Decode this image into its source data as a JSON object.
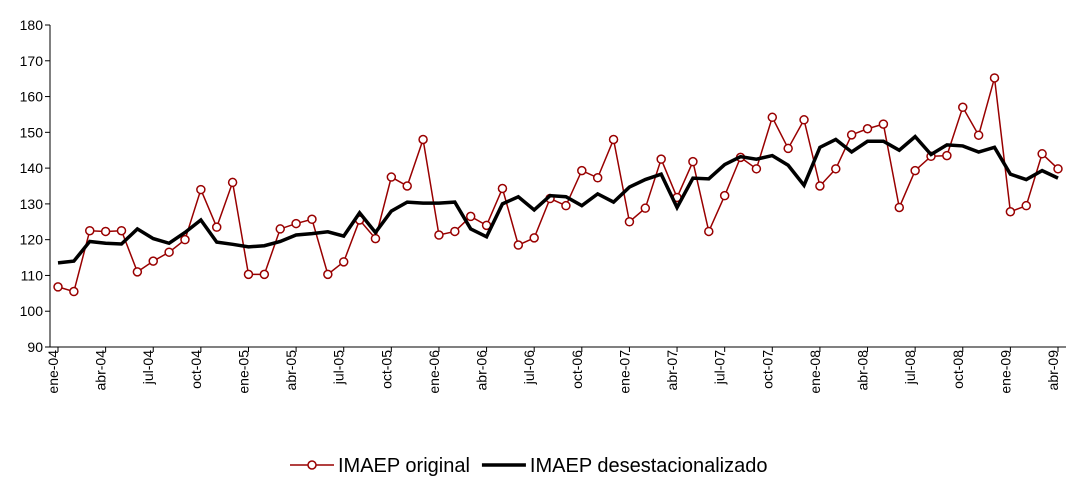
{
  "chart_data": {
    "type": "line",
    "categories": [
      "ene-04",
      null,
      null,
      "abr-04",
      null,
      null,
      "jul-04",
      null,
      null,
      "oct-04",
      null,
      null,
      "ene-05",
      null,
      null,
      "abr-05",
      null,
      null,
      "jul-05",
      null,
      null,
      "oct-05",
      null,
      null,
      "ene-06",
      null,
      null,
      "abr-06",
      null,
      null,
      "jul-06",
      null,
      null,
      "oct-06",
      null,
      null,
      "ene-07",
      null,
      null,
      "abr-07",
      null,
      null,
      "jul-07",
      null,
      null,
      "oct-07",
      null,
      null,
      "ene-08",
      null,
      null,
      "abr-08",
      null,
      null,
      "jul-08",
      null,
      null,
      "oct-08",
      null,
      null,
      "ene-09",
      null,
      null,
      "abr-09"
    ],
    "series": [
      {
        "name": "IMAEP original",
        "color": "#990000",
        "marker": true,
        "values": [
          106.8,
          105.5,
          122.5,
          122.3,
          122.5,
          111,
          114,
          116.5,
          120,
          134,
          123.5,
          136,
          110.3,
          110.3,
          123,
          124.5,
          125.7,
          110.3,
          113.8,
          125.5,
          120.3,
          137.5,
          135,
          148,
          121.3,
          122.3,
          126.5,
          124,
          134.3,
          118.5,
          120.5,
          131.5,
          129.5,
          139.3,
          137.3,
          148,
          125,
          128.8,
          142.5,
          131.8,
          141.8,
          122.3,
          132.3,
          143,
          139.8,
          154.2,
          145.5,
          153.5,
          135,
          139.8,
          149.3,
          151,
          152.3,
          129,
          139.3,
          143.3,
          143.5,
          157,
          149.2,
          165.2,
          127.8,
          129.5,
          144,
          139.8
        ]
      },
      {
        "name": "IMAEP desestacionalizado",
        "color": "#000000",
        "marker": false,
        "values": [
          113.5,
          114,
          119.5,
          119,
          118.8,
          123,
          120.3,
          119,
          122,
          125.5,
          119.3,
          118.7,
          118,
          118.3,
          119.5,
          121.3,
          121.7,
          122.2,
          121,
          127.5,
          122,
          128,
          130.5,
          130.2,
          130.2,
          130.5,
          123,
          120.8,
          130,
          132,
          128.3,
          132.3,
          132,
          129.5,
          132.8,
          130.5,
          134.7,
          136.8,
          138.3,
          129,
          137.2,
          137,
          141,
          143.2,
          142.5,
          143.5,
          140.8,
          135.2,
          145.8,
          148,
          144.5,
          147.5,
          147.5,
          145,
          148.8,
          143.8,
          146.5,
          146.2,
          144.5,
          145.8,
          138.3,
          136.8,
          139.3,
          137.2
        ]
      }
    ],
    "ylim": [
      90,
      180
    ],
    "yticks": [
      90,
      100,
      110,
      120,
      130,
      140,
      150,
      160,
      170,
      180
    ],
    "grid": false,
    "legend": "bottom"
  }
}
